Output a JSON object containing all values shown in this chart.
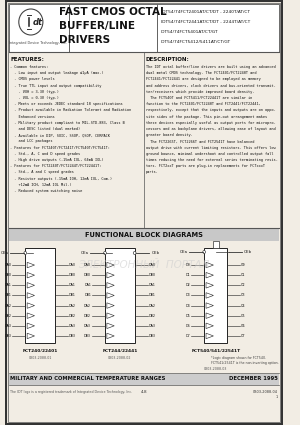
{
  "title_main": "FAST CMOS OCTAL\nBUFFER/LINE\nDRIVERS",
  "part_lines": [
    "IDT54/74FCT2401AT/CT/DT - 2240T/AT/CT",
    "IDT54/74FCT2441AT/CT/DT - 2244T/AT/CT",
    "IDT54/74FCT5401AT/CT/GT",
    "IDT54/74FCT5412/5411AT/CT/GT"
  ],
  "features_title": "FEATURES:",
  "description_title": "DESCRIPTION:",
  "feat_lines": [
    "- Common features:",
    "  - Low input and output leakage ≤1μA (max.)",
    "  - CMOS power levels",
    "  - True TTL input and output compatibility",
    "    - VOH = 3.3V (typ.)",
    "    - VOL = 0.3V (typ.)",
    "  - Meets or exceeds JEDEC standard 18 specifications",
    "  - Product available in Radiation Tolerant and Radiation",
    "    Enhanced versions",
    "  - Military product compliant to MIL-STD-883, Class B",
    "    and DESC listed (dual marked)",
    "  - Available in DIP, SOIC, SSOP, QSOP, CERPACK",
    "    and LCC packages",
    "- Features for FCT240T/FCT241T/FCT540T/FCT541T:",
    "  - Std., A, C and D speed grades",
    "  - High drive outputs (-15mA IOL, 64mA IOL)",
    "- Features for FCT2240T/FCT2244T/FCT22441T:",
    "  - Std., A and C speed grades",
    "  - Resistor outputs (-15mA IOH, 12mA IOL, Com.)",
    "    +12mA IOH, 12mA IOL Mil.)",
    "  - Reduced system switching noise"
  ],
  "desc_lines": [
    "The IDT octal buffer/line drivers are built using an advanced",
    "dual metal CMOS technology. The FCT2401/FCT2240T and",
    "FCT2441/FCT22441 are designed to be employed as memory",
    "and address drivers, clock drivers and bus-oriented transmit-",
    "ter/receivers which provide improved board density.",
    "  The FCT540T and FCT5411/FCT22441T are similar in",
    "function to the FCT2401/FCT2240T and FCT2441/FCT22441,",
    "respectively, except that the inputs and outputs are on oppo-",
    "site sides of the package. This pin-out arrangement makes",
    "these devices especially useful as output ports for micropro-",
    "cessors and as backplane drivers, allowing ease of layout and",
    "greater board density.",
    "  The FCT2265T, FCT2266T and FCT2541T have balanced",
    "output drive with current limiting resistors. This offers low",
    "ground bounce, minimal undershoot and controlled output fall",
    "times reducing the need for external series terminating resis-",
    "tors. FCT2xxT parts are plug-in replacements for FCTxxxT",
    "parts."
  ],
  "func_title": "FUNCTIONAL BLOCK DIAGRAMS",
  "diag1_label": "FCT240/22401",
  "diag2_label": "FCT244/22441",
  "diag3_label": "FCT540/541/22541T",
  "footnote": "*Logic diagram shown for FCT540.\nFCT541/2541T is the non-inverting option.",
  "footer_bar": "MILITARY AND COMMERCIAL TEMPERATURE RANGES",
  "footer_date": "DECEMBER 1995",
  "footer_copy": "The IDT logo is a registered trademark of Integrated Device Technology, Inc.",
  "footer_page": "4-8",
  "footer_doc": "0303-2088-04",
  "watermark": "ЭЛЕКТРОННЫЙ  ПОРТАЛ",
  "bg": "#f2ede4",
  "white": "#ffffff",
  "dark": "#1a1a1a",
  "mid": "#555555",
  "light": "#aaaaaa"
}
